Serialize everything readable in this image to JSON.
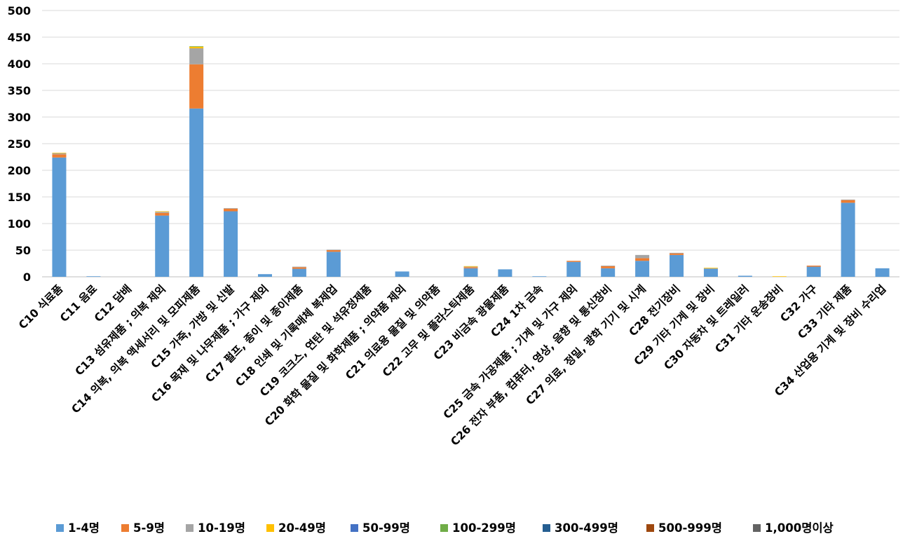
{
  "chart_data": {
    "type": "stacked-bar",
    "title": "",
    "xlabel": "",
    "ylabel": "",
    "ylim": [
      0,
      500
    ],
    "yticks": [
      0,
      50,
      100,
      150,
      200,
      250,
      300,
      350,
      400,
      450,
      500
    ],
    "grid": true,
    "legend_position": "bottom",
    "categories": [
      "C10 식료품",
      "C11 음료",
      "C12 담배",
      "C13 섬유제품 ; 의복 제외",
      "C14 의복, 의복 액세서리 및 모피제품",
      "C15 가죽, 가방 및 신발",
      "C16 목재 및 나무제품 ; 가구 제외",
      "C17 펄프, 종이 및 종이제품",
      "C18 인쇄 및 기록매체 복제업",
      "C19 코크스, 연탄 및 석유정제품",
      "C20 화학 물질 및 화학제품 ; 의약품 제외",
      "C21 의료용 물질 및 의약품",
      "C22 고무 및 플라스틱제품",
      "C23 비금속 광물제품",
      "C24 1차 금속",
      "C25 금속 가공제품 ; 기계 및 가구 제외",
      "C26 전자 부품, 컴퓨터, 영상, 음향 및 통신장비",
      "C27 의료, 정밀, 광학 기기 및 시계",
      "C28 전기장비",
      "C29 기타 기계 및 장비",
      "C30 자동차 및 트레일러",
      "C31 기타 운송장비",
      "C32 가구",
      "C33 기타 제품",
      "C34 산업용 기계 및 장비 수리업"
    ],
    "series": [
      {
        "name": "1-4명",
        "color": "#5B9BD5",
        "values": [
          224,
          1,
          0,
          115,
          316,
          123,
          5,
          15,
          47,
          0,
          10,
          0,
          16,
          14,
          1,
          28,
          16,
          30,
          41,
          15,
          2,
          0,
          19,
          139,
          16
        ]
      },
      {
        "name": "5-9명",
        "color": "#ED7D31",
        "values": [
          6,
          0,
          0,
          5,
          83,
          5,
          0,
          3,
          3,
          0,
          0,
          0,
          2,
          0,
          0,
          2,
          4,
          5,
          3,
          0,
          0,
          0,
          2,
          5,
          0
        ]
      },
      {
        "name": "10-19명",
        "color": "#A5A5A5",
        "values": [
          2,
          0,
          0,
          2,
          30,
          1,
          0,
          1,
          1,
          0,
          0,
          0,
          1,
          0,
          0,
          0,
          1,
          6,
          1,
          1,
          0,
          0,
          0,
          1,
          0
        ]
      },
      {
        "name": "20-49명",
        "color": "#FFC000",
        "values": [
          1,
          0,
          0,
          1,
          3,
          0,
          0,
          0,
          0,
          0,
          0,
          0,
          1,
          0,
          0,
          0,
          0,
          0,
          0,
          1,
          0,
          1,
          0,
          0,
          0
        ]
      },
      {
        "name": "50-99명",
        "color": "#4472C4",
        "values": [
          0,
          0,
          0,
          0,
          0,
          0,
          0,
          0,
          0,
          0,
          0,
          0,
          0,
          0,
          0,
          0,
          0,
          0,
          0,
          0,
          0,
          0,
          0,
          0,
          0
        ]
      },
      {
        "name": "100-299명",
        "color": "#70AD47",
        "values": [
          0,
          0,
          0,
          0,
          1,
          0,
          0,
          0,
          0,
          0,
          0,
          0,
          0,
          0,
          0,
          0,
          0,
          0,
          0,
          0,
          0,
          0,
          0,
          0,
          0
        ]
      },
      {
        "name": "300-499명",
        "color": "#255E91",
        "values": [
          0,
          0,
          0,
          0,
          0,
          0,
          0,
          0,
          0,
          0,
          0,
          0,
          0,
          0,
          0,
          0,
          0,
          0,
          0,
          0,
          0,
          0,
          0,
          0,
          0
        ]
      },
      {
        "name": "500-999명",
        "color": "#9E480E",
        "values": [
          0,
          0,
          0,
          0,
          0,
          0,
          0,
          0,
          0,
          0,
          0,
          0,
          0,
          0,
          0,
          0,
          0,
          0,
          0,
          0,
          0,
          0,
          0,
          0,
          0
        ]
      },
      {
        "name": "1,000명이상",
        "color": "#636363",
        "values": [
          0,
          0,
          0,
          0,
          0,
          0,
          0,
          0,
          0,
          0,
          0,
          0,
          0,
          0,
          0,
          0,
          0,
          0,
          0,
          0,
          0,
          0,
          0,
          0,
          0
        ]
      }
    ]
  }
}
